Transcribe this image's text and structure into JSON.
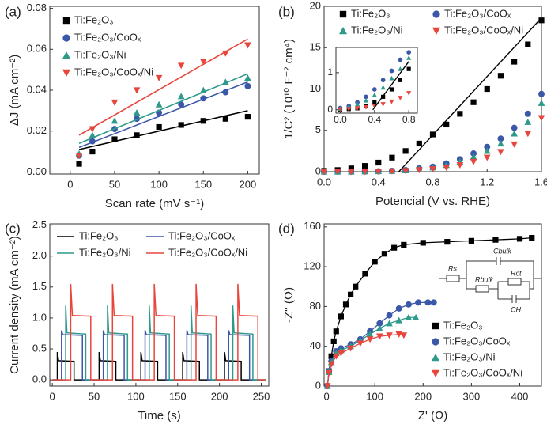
{
  "chart_data": [
    {
      "type": "scatter",
      "panel_label": "(a)",
      "xlabel": "Scan rate (mV s⁻¹)",
      "ylabel": "ΔJ (mA cm⁻²)",
      "x": [
        10,
        25,
        50,
        75,
        100,
        125,
        150,
        175,
        200
      ],
      "xlim": [
        -23,
        213
      ],
      "xticks": [
        0,
        50,
        100,
        150,
        200
      ],
      "ylim": [
        -0.001,
        0.081
      ],
      "yticks": [
        {
          "value": 0,
          "label": "0.00"
        },
        {
          "value": 0.02,
          "label": "0.02"
        },
        {
          "value": 0.04,
          "label": "0.04"
        },
        {
          "value": 0.06,
          "label": "0.06"
        },
        {
          "value": 0.08,
          "label": "0.08"
        }
      ],
      "fit_x": [
        10,
        200
      ],
      "series": [
        {
          "name": "Ti:Fe₂O₃",
          "color": "#000000",
          "marker": "square",
          "values": [
            0.004,
            0.01,
            0.016,
            0.018,
            0.022,
            0.023,
            0.025,
            0.026,
            0.027
          ],
          "fit": [
            0.011,
            0.03
          ]
        },
        {
          "name": "Ti:Fe₂O₃/CoOₓ",
          "color": "#3b57a8",
          "marker": "circle",
          "values": [
            0.008,
            0.015,
            0.021,
            0.026,
            0.029,
            0.033,
            0.036,
            0.039,
            0.042
          ],
          "fit": [
            0.012,
            0.044
          ]
        },
        {
          "name": "Ti:Fe₂O₃/Ni",
          "color": "#2e9a8a",
          "marker": "triangle-up",
          "values": [
            0.009,
            0.018,
            0.025,
            0.029,
            0.033,
            0.037,
            0.04,
            0.044,
            0.046
          ],
          "fit": [
            0.014,
            0.048
          ]
        },
        {
          "name": "Ti:Fe₂O₃/CoOₓ/Ni",
          "color": "#e8453c",
          "marker": "triangle-down",
          "values": [
            0.008,
            0.021,
            0.034,
            0.04,
            0.046,
            0.052,
            0.054,
            0.058,
            0.062
          ],
          "fit": [
            0.018,
            0.065
          ]
        }
      ]
    },
    {
      "type": "scatter",
      "panel_label": "(b)",
      "xlabel": "Potencial (V vs. RHE)",
      "ylabel": "1/C² (10¹⁰ F⁻² cm⁴)",
      "x": [
        0,
        0.1,
        0.2,
        0.3,
        0.4,
        0.5,
        0.6,
        0.7,
        0.8,
        0.9,
        1.0,
        1.1,
        1.2,
        1.3,
        1.4,
        1.5,
        1.6
      ],
      "xlim": [
        0,
        1.6
      ],
      "xticks": [
        {
          "value": 0,
          "label": "0.0"
        },
        {
          "value": 0.4,
          "label": "0.4"
        },
        {
          "value": 0.8,
          "label": "0.8"
        },
        {
          "value": 1.2,
          "label": "1.2"
        },
        {
          "value": 1.6,
          "label": "1.6"
        }
      ],
      "ylim": [
        0,
        20
      ],
      "yticks": [
        0,
        5,
        10,
        15,
        20
      ],
      "fit_x": [
        0.55,
        1.6
      ],
      "fit_y": [
        0,
        18.6
      ],
      "series": [
        {
          "name": "Ti:Fe₂O₃",
          "color": "#000000",
          "marker": "square",
          "values": [
            0.1,
            0.2,
            0.4,
            0.7,
            1.1,
            1.7,
            2.5,
            3.4,
            4.5,
            5.7,
            7.0,
            8.4,
            10.0,
            11.6,
            13.3,
            15.4,
            18.3
          ]
        },
        {
          "name": "Ti:Fe₂O₃/CoOₓ",
          "color": "#3b57a8",
          "marker": "circle",
          "values": [
            0,
            0,
            0,
            0.02,
            0.05,
            0.1,
            0.2,
            0.4,
            0.6,
            1.0,
            1.5,
            2.2,
            3.0,
            4.0,
            5.3,
            7.0,
            9.4
          ]
        },
        {
          "name": "Ti:Fe₂O₃/Ni",
          "color": "#2e9a8a",
          "marker": "triangle-up",
          "values": [
            0,
            0,
            0,
            0.02,
            0.04,
            0.08,
            0.15,
            0.3,
            0.5,
            0.8,
            1.2,
            1.8,
            2.5,
            3.4,
            4.6,
            6.0,
            8.3
          ]
        },
        {
          "name": "Ti:Fe₂O₃/CoOₓ/Ni",
          "color": "#e8453c",
          "marker": "triangle-down",
          "values": [
            0,
            0,
            0,
            0.01,
            0.02,
            0.05,
            0.1,
            0.2,
            0.3,
            0.5,
            0.8,
            1.2,
            1.7,
            2.4,
            3.3,
            4.6,
            6.5
          ]
        }
      ]
    },
    {
      "type": "scatter",
      "x": [
        0,
        0.1,
        0.2,
        0.3,
        0.4,
        0.5,
        0.6,
        0.7,
        0.8
      ],
      "xlim": [
        -0.05,
        0.9
      ],
      "xticks": [
        {
          "value": 0,
          "label": "0.0"
        },
        {
          "value": 0.4,
          "label": "0.4"
        },
        {
          "value": 0.8,
          "label": "0.8"
        }
      ],
      "ylim": [
        -0.09,
        1.68
      ],
      "yticks": [
        0,
        1
      ],
      "fit_x": [
        0.38,
        0.8
      ],
      "fit_y": [
        0,
        1.3
      ],
      "series": [
        {
          "color": "#000000",
          "marker": "square",
          "values": [
            0.01,
            0.02,
            0.04,
            0.1,
            0.2,
            0.35,
            0.55,
            0.8,
            1.1
          ]
        },
        {
          "color": "#3b57a8",
          "marker": "circle",
          "values": [
            0.05,
            0.1,
            0.2,
            0.35,
            0.55,
            0.8,
            1.05,
            1.35,
            1.55
          ]
        },
        {
          "color": "#2e9a8a",
          "marker": "triangle-up",
          "values": [
            0.03,
            0.08,
            0.15,
            0.25,
            0.4,
            0.6,
            0.85,
            1.1,
            1.4
          ]
        },
        {
          "color": "#e8453c",
          "marker": "triangle-down",
          "values": [
            0.01,
            0.02,
            0.04,
            0.07,
            0.1,
            0.15,
            0.22,
            0.32,
            0.45
          ]
        }
      ]
    },
    {
      "type": "line",
      "panel_label": "(c)",
      "xlabel": "Time (s)",
      "ylabel": "Current density (mA cm⁻²)",
      "xlim": [
        -3,
        259
      ],
      "xticks": [
        0,
        50,
        100,
        150,
        200,
        250
      ],
      "ylim": [
        -0.1,
        2.52
      ],
      "yticks": [
        {
          "value": 0,
          "label": "0.0"
        },
        {
          "value": 0.5,
          "label": "0.5"
        },
        {
          "value": 1,
          "label": "1.0"
        },
        {
          "value": 1.5,
          "label": "1.5"
        },
        {
          "value": 2,
          "label": "2.0"
        },
        {
          "value": 2.5,
          "label": "2.5"
        }
      ],
      "series": [
        {
          "name": "Ti:Fe₂O₃",
          "color": "#000000",
          "x": [
            0,
            6,
            6,
            7.5,
            26,
            26,
            56,
            56,
            57.5,
            76,
            76,
            106,
            106,
            107.5,
            126,
            126,
            156,
            156,
            157.5,
            176,
            176,
            206,
            206,
            207.5,
            226,
            226,
            255
          ],
          "values": [
            0,
            0,
            0.45,
            0.31,
            0.3,
            0,
            0,
            0.45,
            0.31,
            0.3,
            0,
            0,
            0.45,
            0.31,
            0.3,
            0,
            0,
            0.45,
            0.31,
            0.3,
            0,
            0,
            0.45,
            0.31,
            0.3,
            0,
            0
          ]
        },
        {
          "name": "Ti:Fe₂O₃/CoOₓ",
          "color": "#3b57a8",
          "x": [
            0,
            11,
            11,
            12.5,
            36,
            36,
            61,
            61,
            62.5,
            86,
            86,
            111,
            111,
            112.5,
            136,
            136,
            161,
            161,
            162.5,
            186,
            186,
            211,
            211,
            212.5,
            236,
            236,
            255
          ],
          "values": [
            0,
            0,
            0.8,
            0.73,
            0.72,
            0,
            0,
            0.8,
            0.73,
            0.72,
            0,
            0,
            0.8,
            0.73,
            0.72,
            0,
            0,
            0.8,
            0.73,
            0.72,
            0,
            0,
            0.8,
            0.73,
            0.72,
            0,
            0
          ]
        },
        {
          "name": "Ti:Fe₂O₃/Ni",
          "color": "#2e9a8a",
          "x": [
            0,
            16,
            16,
            17.5,
            40,
            40,
            66,
            66,
            67.5,
            90,
            90,
            116,
            116,
            117.5,
            140,
            140,
            166,
            166,
            167.5,
            190,
            190,
            216,
            216,
            217.5,
            240,
            240,
            255
          ],
          "values": [
            0,
            0,
            1.2,
            0.76,
            0.74,
            0,
            0,
            1.2,
            0.76,
            0.74,
            0,
            0,
            1.2,
            0.76,
            0.74,
            0,
            0,
            1.2,
            0.76,
            0.74,
            0,
            0,
            1.2,
            0.76,
            0.74,
            0,
            0
          ]
        },
        {
          "name": "Ti:Fe₂O₃/CoOₓ/Ni",
          "color": "#e8453c",
          "x": [
            0,
            22,
            22,
            24,
            46,
            46,
            72,
            72,
            74,
            96,
            96,
            122,
            122,
            124,
            146,
            146,
            172,
            172,
            174,
            196,
            196,
            222,
            222,
            224,
            246,
            246,
            255
          ],
          "values": [
            0,
            0,
            1.55,
            1.04,
            1.03,
            0,
            0,
            1.55,
            1.04,
            1.03,
            0,
            0,
            1.55,
            1.04,
            1.03,
            0,
            0,
            1.55,
            1.04,
            1.03,
            0,
            0,
            1.55,
            1.04,
            1.03,
            0,
            0
          ]
        }
      ]
    },
    {
      "type": "scatter",
      "panel_label": "(d)",
      "xlabel": "Z' (Ω)",
      "ylabel": "-Z'' (Ω)",
      "xlim": [
        -5,
        445
      ],
      "xticks": [
        0,
        100,
        200,
        300,
        400
      ],
      "ylim": [
        0,
        163
      ],
      "yticks": [
        0,
        40,
        80,
        120,
        160
      ],
      "connect": true,
      "circuit_labels": [
        "Rs",
        "Cbulk",
        "Rct",
        "Rbulk",
        "CH"
      ],
      "series": [
        {
          "name": "Ti:Fe₂O₃",
          "color": "#000000",
          "marker": "square",
          "x": [
            2,
            5,
            10,
            15,
            20,
            30,
            40,
            50,
            60,
            80,
            100,
            120,
            140,
            160,
            200,
            250,
            300,
            350,
            400,
            425
          ],
          "values": [
            0,
            15,
            30,
            45,
            55,
            70,
            82,
            92,
            100,
            113,
            125,
            133,
            139,
            142,
            144,
            145,
            146,
            147,
            148,
            149
          ]
        },
        {
          "name": "Ti:Fe₂O₃/CoOₓ",
          "color": "#3b57a8",
          "marker": "circle",
          "x": [
            2,
            5,
            10,
            20,
            30,
            50,
            70,
            90,
            110,
            130,
            150,
            170,
            190,
            210,
            222
          ],
          "values": [
            0,
            15,
            25,
            35,
            38,
            42,
            47,
            55,
            63,
            71,
            78,
            82,
            84,
            84,
            84
          ]
        },
        {
          "name": "Ti:Fe₂O₃/Ni",
          "color": "#2e9a8a",
          "marker": "triangle-up",
          "x": [
            2,
            5,
            10,
            20,
            30,
            50,
            70,
            90,
            110,
            130,
            150,
            170,
            185
          ],
          "values": [
            0,
            14,
            24,
            33,
            36,
            40,
            46,
            52,
            58,
            63,
            66,
            69,
            69
          ]
        },
        {
          "name": "Ti:Fe₂O₃/CoOₓ/Ni",
          "color": "#e8453c",
          "marker": "triangle-down",
          "x": [
            2,
            5,
            10,
            20,
            30,
            50,
            70,
            90,
            110,
            130,
            150,
            160
          ],
          "values": [
            0,
            13,
            22,
            30,
            33,
            38,
            43,
            47,
            50,
            51,
            52,
            51
          ]
        }
      ]
    }
  ]
}
